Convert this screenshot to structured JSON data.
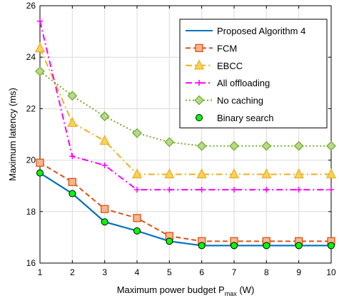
{
  "chart_data": {
    "type": "line",
    "xlabel": "Maximum power budget P",
    "xlabel_sub": "max",
    "xlabel_unit": " (W)",
    "ylabel": "Maximum latency (ms)",
    "xlim": [
      1,
      10
    ],
    "ylim": [
      16,
      26
    ],
    "xticks": [
      1,
      2,
      3,
      4,
      5,
      6,
      7,
      8,
      9,
      10
    ],
    "yticks": [
      16,
      18,
      20,
      22,
      24,
      26
    ],
    "grid": true,
    "legend_position": "top-right",
    "x": [
      1,
      2,
      3,
      4,
      5,
      6,
      7,
      8,
      9,
      10
    ],
    "series": [
      {
        "name": "Proposed Algorithm 4",
        "values": [
          19.5,
          18.7,
          17.6,
          17.25,
          16.85,
          16.68,
          16.68,
          16.68,
          16.68,
          16.68
        ],
        "color": "#0072BD",
        "line": "solid",
        "marker": "none"
      },
      {
        "name": "FCM",
        "values": [
          19.9,
          19.15,
          18.1,
          17.75,
          17.05,
          16.85,
          16.85,
          16.85,
          16.85,
          16.85
        ],
        "color": "#D95319",
        "line": "dashed",
        "marker": "square"
      },
      {
        "name": "EBCC",
        "values": [
          24.35,
          21.45,
          20.75,
          19.45,
          19.45,
          19.45,
          19.45,
          19.45,
          19.45,
          19.45
        ],
        "color": "#EDB120",
        "line": "dashdot",
        "marker": "triangle"
      },
      {
        "name": "All offloading",
        "values": [
          25.4,
          20.15,
          19.8,
          18.85,
          18.85,
          18.85,
          18.85,
          18.85,
          18.85,
          18.85
        ],
        "color": "#FF00FF",
        "line": "dashdot",
        "marker": "plus"
      },
      {
        "name": "No caching",
        "values": [
          23.45,
          22.5,
          21.7,
          21.05,
          20.7,
          20.55,
          20.55,
          20.55,
          20.55,
          20.55
        ],
        "color": "#77AC30",
        "line": "dotted",
        "marker": "diamond"
      },
      {
        "name": "Binary search",
        "values": [
          19.5,
          18.7,
          17.6,
          17.25,
          16.85,
          16.68,
          16.68,
          16.68,
          16.68,
          16.68
        ],
        "color": "#00FF00",
        "line": "none",
        "marker": "circle"
      }
    ]
  }
}
